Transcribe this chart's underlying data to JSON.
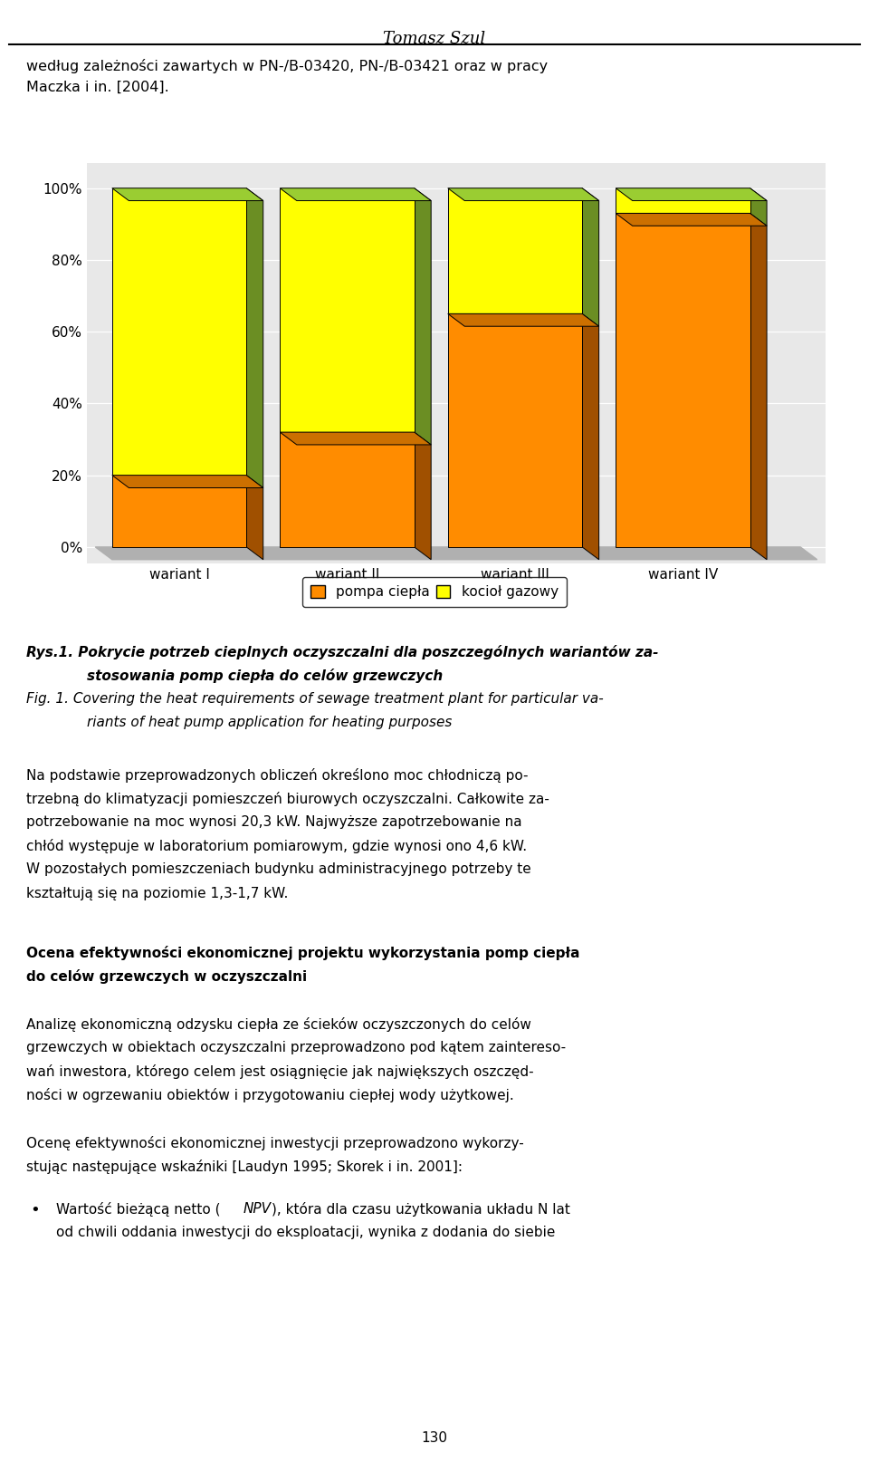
{
  "title_header": "Tomasz Szul",
  "intro_line1": "według zależności zawartych w PN-/B-03420, PN-/B-03421 oraz w pracy",
  "intro_line2": "Maczka i in. [2004].",
  "categories": [
    "wariant I",
    "wariant II",
    "wariant III",
    "wariant IV"
  ],
  "pompa_values": [
    20,
    32,
    65,
    93
  ],
  "kociol_values": [
    80,
    68,
    35,
    7
  ],
  "color_pompa_face": "#FF8C00",
  "color_pompa_side": "#A05000",
  "color_pompa_top": "#CC7000",
  "color_kociol_face": "#FFFF00",
  "color_kociol_side": "#6B8E23",
  "color_kociol_top": "#9ACD32",
  "color_floor": "#B0B0B0",
  "color_chart_bg": "#E8E8E8",
  "legend_pompa": "pompa ciepła",
  "legend_kociol": "kocioł gazowy",
  "ylabel_ticks": [
    "0%",
    "20%",
    "40%",
    "60%",
    "80%",
    "100%"
  ],
  "ylabel_values": [
    0,
    20,
    40,
    60,
    80,
    100
  ],
  "fig_caption_pl_1": "Rys.1. Pokrycie potrzeb cieplnych oczyszczalni dla poszczególnych wariantów za-",
  "fig_caption_pl_2": "stosowania pomp ciepła do celów grzewczych",
  "fig_caption_en_1": "Fig. 1. Covering the heat requirements of sewage treatment plant for particular va-",
  "fig_caption_en_2": "riants of heat pump application for heating purposes",
  "body_text_lines": [
    "Na podstawie przeprowadzonych obliczeń określono moc chłodniczą po-",
    "trzebną do klimatyzacji pomieszczeń biurowych oczyszczalni. Całkowite za-",
    "potrzebowanie na moc wynosi 20,3 kW. Najwyższe zapotrzebowanie na",
    "chłód występuje w laboratorium pomiarowym, gdzie wynosi ono 4,6 kW.",
    "W pozostałych pomieszczeniach budynku administracyjnego potrzeby te",
    "kształtują się na poziomie 1,3-1,7 kW."
  ],
  "section_title_lines": [
    "Ocena efektywności ekonomicznej projektu wykorzystania pomp ciepła",
    "do celów grzewczych w oczyszczalni"
  ],
  "section_body_lines": [
    "Analizę ekonomiczną odzysku ciepła ze ścieków oczyszczonych do celów",
    "grzewczych w obiektach oczyszczalni przeprowadzono pod kątem zaintereso-",
    "wań inwestora, którego celem jest osiągnięcie jak największych oszczęd-",
    "ności w ogrzewaniu obiektów i przygotowaniu ciepłej wody użytkowej."
  ],
  "section_body2_lines": [
    "Ocenę efektywności ekonomicznej inwestycji przeprowadzono wykorzy-",
    "stując następujące wskaźniki [Laudyn 1995; Skorek i in. 2001]:"
  ],
  "bullet_line1a": "Wartość bieżącą netto (",
  "bullet_line1b": "NPV",
  "bullet_line1c": "), która dla czasu użytkowania układu N lat",
  "bullet_line2": "od chwili oddania inwestycji do eksploatacji, wynika z dodania do siebie",
  "page_number": "130",
  "background_color": "#FFFFFF"
}
